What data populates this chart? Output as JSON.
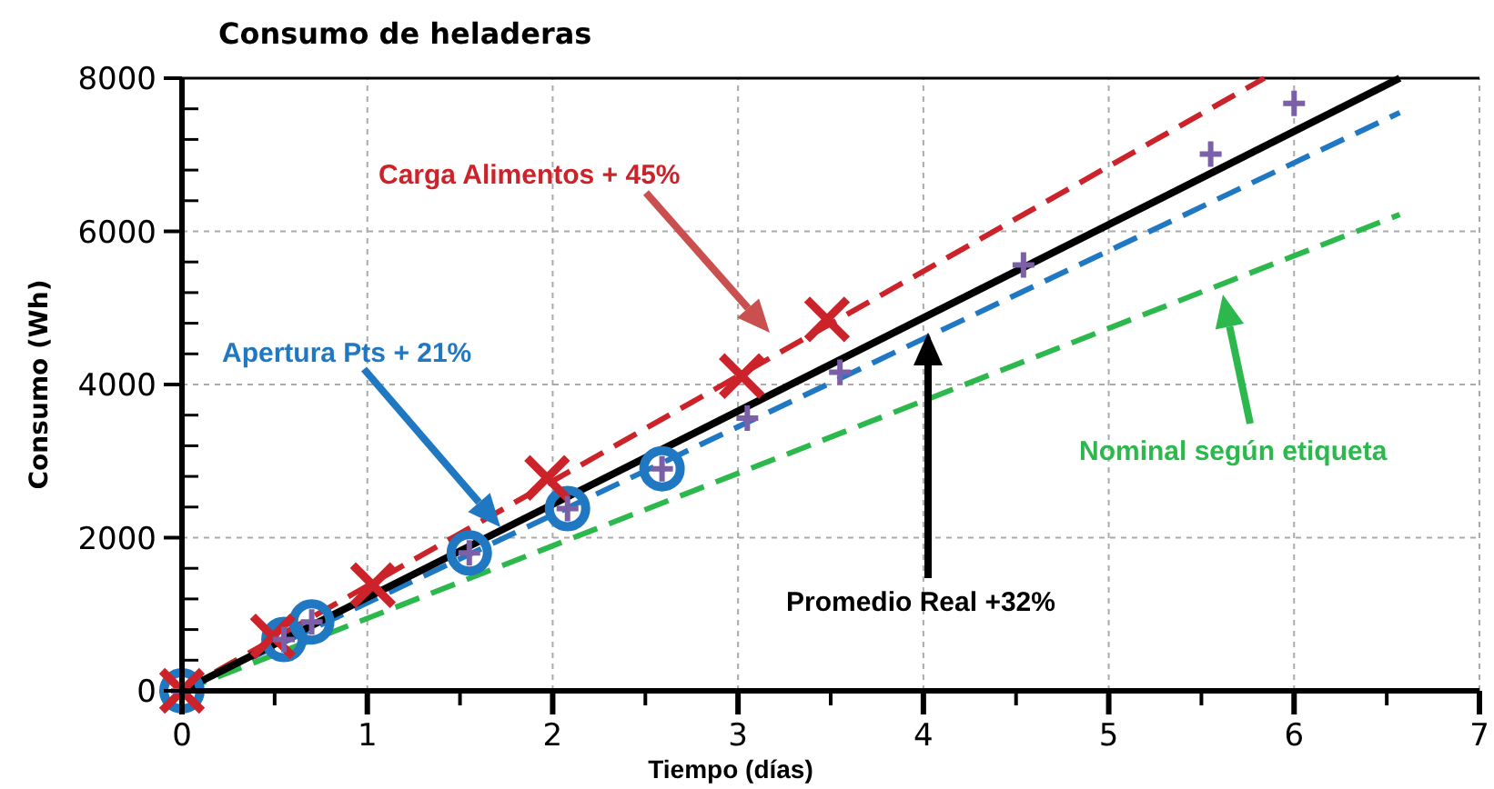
{
  "chart_data": {
    "type": "line",
    "title": "Consumo de heladeras",
    "xlabel": "Tiempo (días)",
    "ylabel": "Consumo (Wh)",
    "xlim": [
      0,
      7
    ],
    "ylim": [
      0,
      8000
    ],
    "xticks": [
      0,
      {
        "value": 0.5,
        "label": null
      },
      1,
      {
        "value": 1.5,
        "label": null
      },
      2,
      {
        "value": 2.5,
        "label": null
      },
      3,
      {
        "value": 3.5,
        "label": null
      },
      4,
      {
        "value": 4.5,
        "label": null
      },
      5,
      {
        "value": 5.5,
        "label": null
      },
      6,
      {
        "value": 6.5,
        "label": null
      },
      7
    ],
    "yticks": [
      0,
      {
        "value": 400,
        "label": null
      },
      {
        "value": 800,
        "label": null
      },
      {
        "value": 1200,
        "label": null
      },
      {
        "value": 1600,
        "label": null
      },
      2000,
      {
        "value": 2400,
        "label": null
      },
      {
        "value": 2800,
        "label": null
      },
      {
        "value": 3200,
        "label": null
      },
      {
        "value": 3600,
        "label": null
      },
      4000,
      {
        "value": 4400,
        "label": null
      },
      {
        "value": 4800,
        "label": null
      },
      {
        "value": 5200,
        "label": null
      },
      {
        "value": 5600,
        "label": null
      },
      6000,
      {
        "value": 6400,
        "label": null
      },
      {
        "value": 6800,
        "label": null
      },
      {
        "value": 7200,
        "label": null
      },
      {
        "value": 7600,
        "label": null
      },
      8000
    ],
    "grid": true,
    "series": [
      {
        "color": "#cc2229",
        "line_style": "dashed",
        "x": [
          0,
          5.84
        ],
        "values": [
          0,
          8000
        ]
      },
      {
        "color": "#1f78c1",
        "line_style": "dashed",
        "x": [
          0,
          6.57
        ],
        "values": [
          0,
          7550
        ]
      },
      {
        "color": "#2db84d",
        "line_style": "dashed",
        "x": [
          0,
          6.57
        ],
        "values": [
          0,
          6220
        ]
      },
      {
        "color": "#000000",
        "line_style": "solid",
        "x": [
          0,
          6.57
        ],
        "values": [
          0,
          8000
        ]
      },
      {
        "type": "scatter",
        "color": "#1f78c1",
        "marker": "circle",
        "x": [
          0,
          0.55,
          0.7,
          1.55,
          2.08,
          2.59
        ],
        "values": [
          0,
          670,
          900,
          1800,
          2380,
          2900
        ]
      },
      {
        "type": "scatter",
        "color": "#cc2229",
        "marker": "x",
        "x": [
          0,
          0.49,
          1.03,
          1.97,
          3.02,
          3.48
        ],
        "values": [
          0,
          710,
          1380,
          2780,
          4110,
          4850
        ]
      },
      {
        "type": "scatter",
        "color": "#7b5fa8",
        "marker": "plus",
        "x": [
          0,
          0.55,
          0.7,
          1.55,
          2.08,
          2.59,
          3.05,
          3.55,
          4.54,
          5.55,
          6.0
        ],
        "values": [
          0,
          670,
          900,
          1800,
          2380,
          2900,
          3560,
          4160,
          5560,
          7010,
          7670
        ]
      }
    ],
    "annotations": [
      "Carga Alimentos + 45%",
      "Apertura Pts + 21%",
      "Nominal según etiqueta",
      "Promedio Real +32%"
    ]
  }
}
